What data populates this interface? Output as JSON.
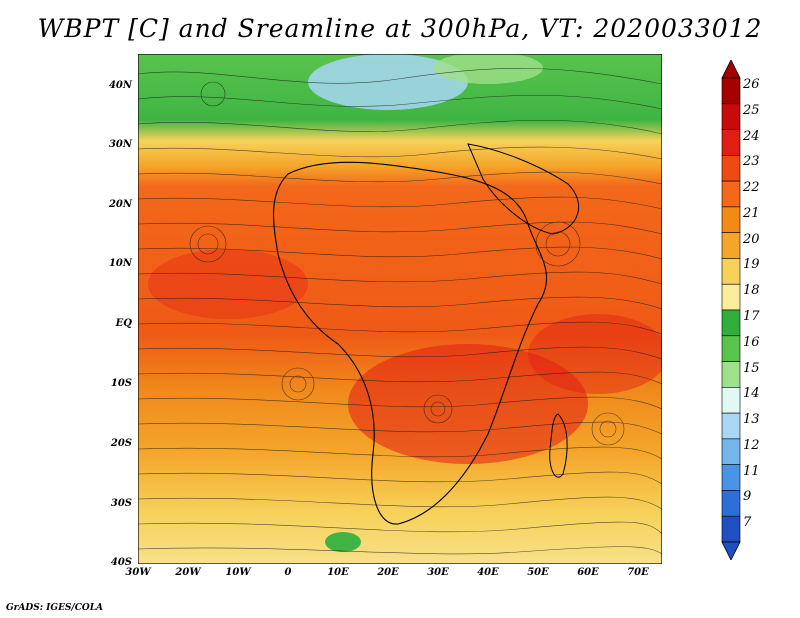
{
  "title": "WBPT [C] and Sreamline at 300hPa, VT: 2020033012",
  "credit": "GrADS: IGES/COLA",
  "lat_labels": [
    "40N",
    "30N",
    "20N",
    "10N",
    "EQ",
    "10S",
    "20S",
    "30S",
    "40S"
  ],
  "lon_labels": [
    "30W",
    "20W",
    "10W",
    "0",
    "10E",
    "20E",
    "30E",
    "40E",
    "50E",
    "60E",
    "70E"
  ],
  "colorbar": {
    "labels": [
      "26",
      "25",
      "24",
      "23",
      "22",
      "21",
      "20",
      "19",
      "18",
      "17",
      "16",
      "15",
      "14",
      "13",
      "12",
      "11",
      "9",
      "7"
    ],
    "colors": [
      "#a50000",
      "#c80a0a",
      "#e11e14",
      "#ef4a14",
      "#f3681a",
      "#f38a14",
      "#f5a52a",
      "#f6d25a",
      "#f9ec9a",
      "#2fae3c",
      "#58c44c",
      "#9fe08a",
      "#e2f8f4",
      "#a7d7f3",
      "#75b5ec",
      "#4a93e6",
      "#2c6fd8",
      "#1f4fc0"
    ]
  }
}
